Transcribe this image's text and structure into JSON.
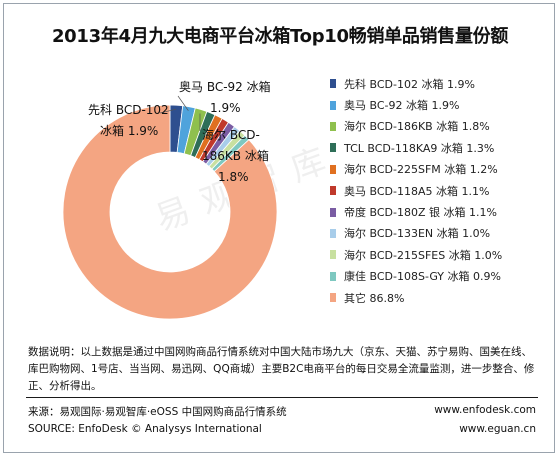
{
  "title": "2013年4月九大电商平台冰箱Top10畅销单品销售量份额",
  "watermark": "易观智库",
  "chart_data": {
    "type": "pie",
    "style": "donut",
    "series": [
      {
        "name": "先科 BCD-102 冰箱",
        "value": 1.9,
        "label": "1.9%",
        "color": "#2e4f8f"
      },
      {
        "name": "奥马 BC-92 冰箱",
        "value": 1.9,
        "label": "1.9%",
        "color": "#4fa3dc"
      },
      {
        "name": "海尔 BCD-186KB 冰箱",
        "value": 1.8,
        "label": "1.8%",
        "color": "#8fc04e"
      },
      {
        "name": "TCL BCD-118KA9 冰箱",
        "value": 1.3,
        "label": "1.3%",
        "color": "#2e6e58"
      },
      {
        "name": "海尔 BCD-225SFM 冰箱",
        "value": 1.2,
        "label": "1.2%",
        "color": "#e07020"
      },
      {
        "name": "奥马 BCD-118A5 冰箱",
        "value": 1.1,
        "label": "1.1%",
        "color": "#c0392b"
      },
      {
        "name": "帝度 BCD-180Z 银 冰箱",
        "value": 1.1,
        "label": "1.1%",
        "color": "#7a5ca3"
      },
      {
        "name": "海尔 BCD-133EN 冰箱",
        "value": 1.0,
        "label": "1.0%",
        "color": "#a8cdea"
      },
      {
        "name": "海尔 BCD-215SFES 冰箱",
        "value": 1.0,
        "label": "1.0%",
        "color": "#c8e0a0"
      },
      {
        "name": "康佳 BCD-108S-GY 冰箱",
        "value": 0.9,
        "label": "0.9%",
        "color": "#7ec8c0"
      },
      {
        "name": "其它",
        "value": 86.8,
        "label": "86.8%",
        "color": "#f4a582"
      }
    ],
    "slice_labels": [
      {
        "series_index": 0,
        "name_text": "先科 BCD-102",
        "pct_text": "冰箱  1.9%"
      },
      {
        "series_index": 1,
        "name_text": "奥马 BC-92 冰箱",
        "pct_text": "1.9%"
      },
      {
        "series_index": 2,
        "name_text": "海尔 BCD-",
        "name_text2": "186KB 冰箱",
        "pct_text": "1.8%"
      }
    ],
    "legend_position": "right"
  },
  "note": "数据说明：以上数据是通过中国网购商品行情系统对中国大陆市场九大（京东、天猫、苏宁易购、国美在线、库巴购物网、1号店、当当网、易迅网、QQ商城）主要B2C电商平台的每日交易全流量监测，进一步整合、修正、分析得出。",
  "footer": {
    "source_cn": "来源：易观国际·易观智库·eOSS 中国网购商品行情系统",
    "source_en": "SOURCE: EnfoDesk © Analysys International",
    "url1": "www.enfodesk.com",
    "url2": "www.eguan.cn"
  }
}
